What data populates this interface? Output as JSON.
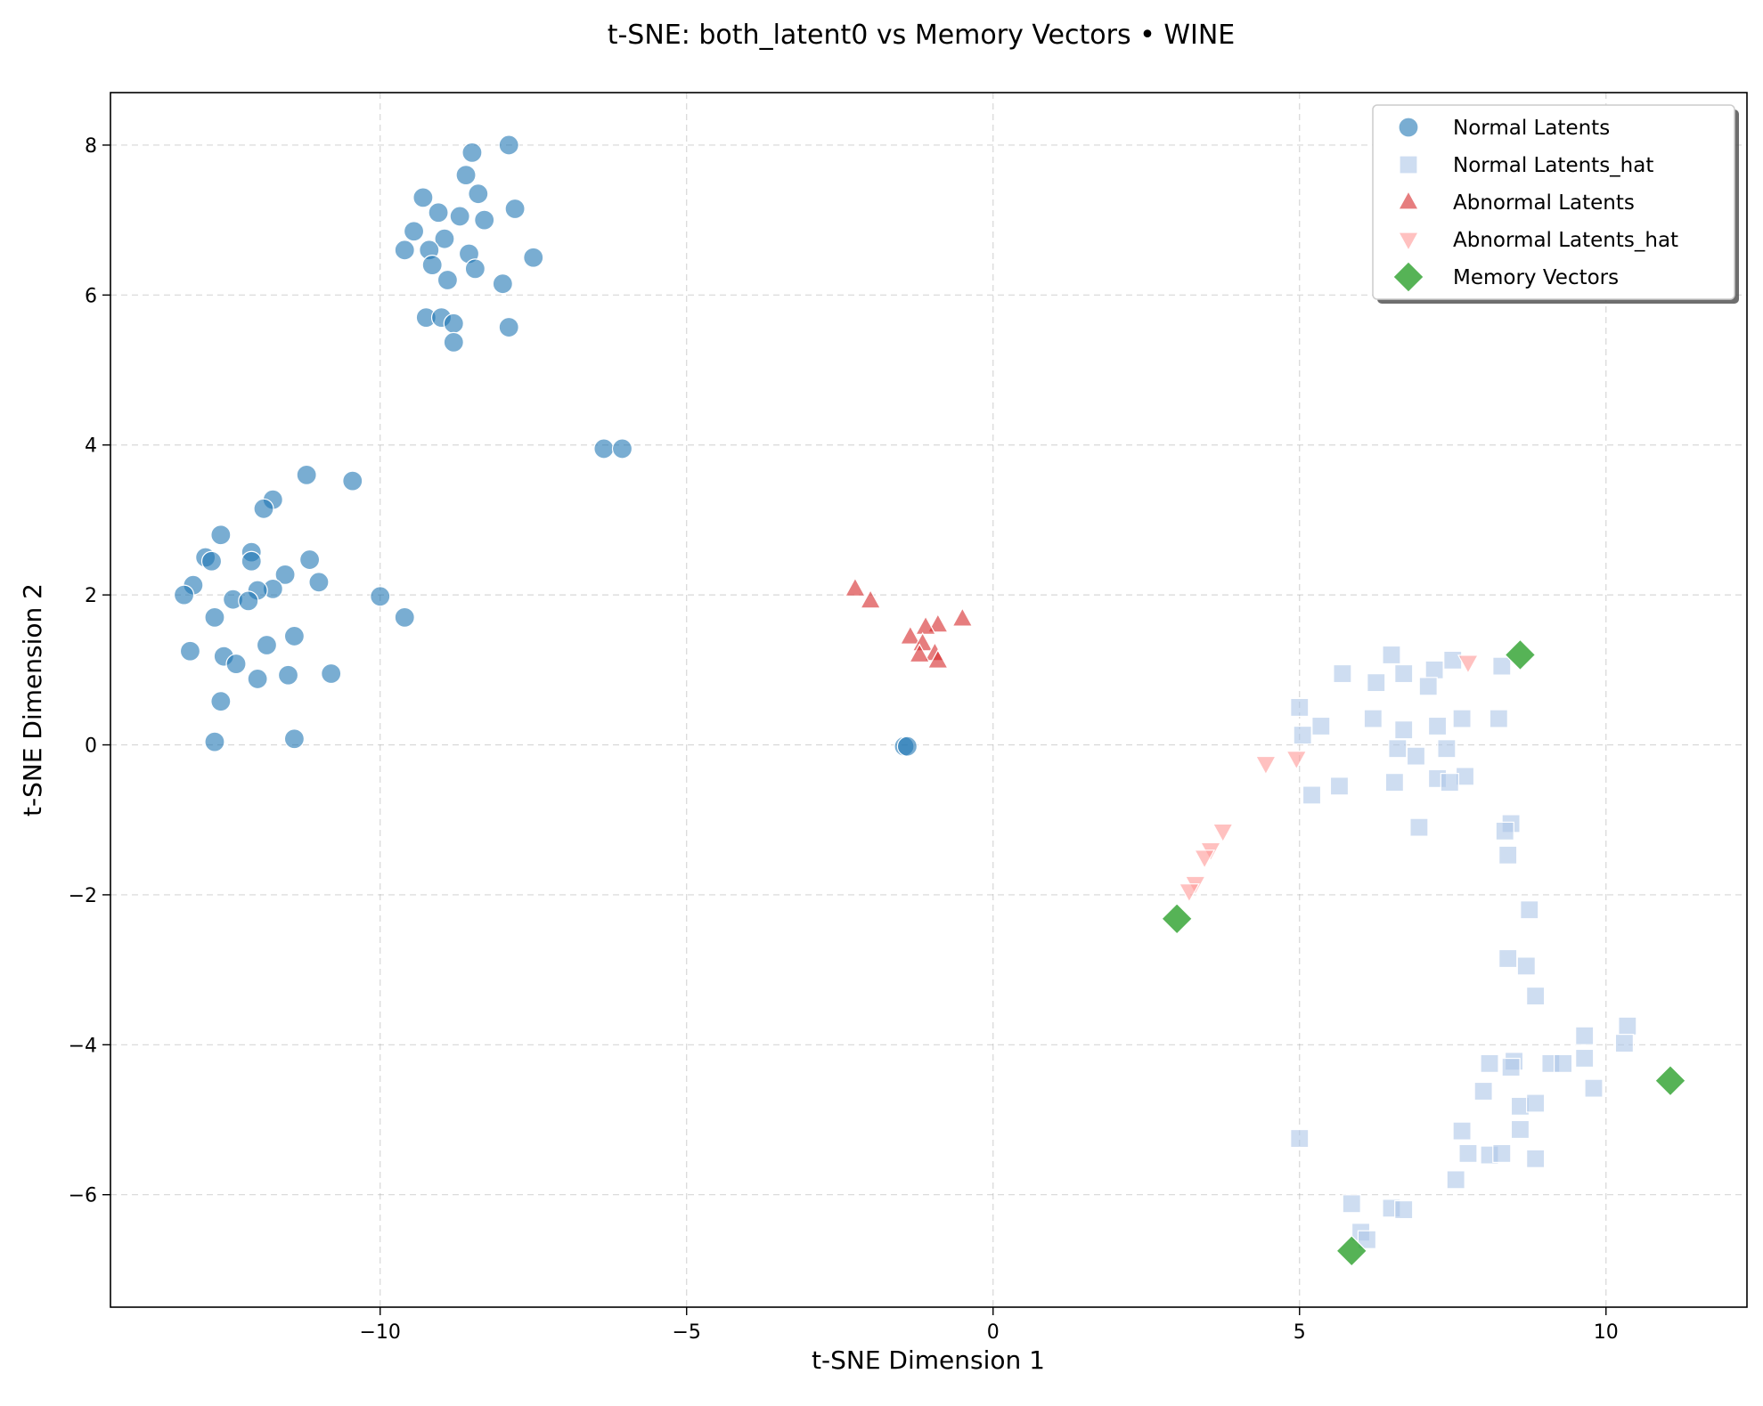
{
  "chart_data": {
    "type": "scatter",
    "title": "t-SNE: both_latent0 vs Memory Vectors • WINE",
    "xlabel": "t-SNE Dimension 1",
    "ylabel": "t-SNE Dimension 2",
    "xlim": [
      -14.4,
      12.3
    ],
    "ylim": [
      -7.5,
      8.7
    ],
    "xticks": [
      -10,
      -5,
      0,
      5,
      10
    ],
    "yticks": [
      -6,
      -4,
      -2,
      0,
      2,
      4,
      6,
      8
    ],
    "xtick_labels": [
      "−10",
      "−5",
      "0",
      "5",
      "10"
    ],
    "ytick_labels": [
      "−6",
      "−4",
      "−2",
      "0",
      "2",
      "4",
      "6",
      "8"
    ],
    "grid": true,
    "legend_position": "top-right",
    "series": [
      {
        "name": "Normal Latents",
        "marker": "circle",
        "color": "#1f77b4",
        "alpha": 0.6,
        "points": [
          [
            -8.5,
            7.9
          ],
          [
            -7.9,
            8.0
          ],
          [
            -8.6,
            7.6
          ],
          [
            -8.4,
            7.35
          ],
          [
            -9.3,
            7.3
          ],
          [
            -7.8,
            7.15
          ],
          [
            -9.05,
            7.1
          ],
          [
            -8.7,
            7.05
          ],
          [
            -8.3,
            7.0
          ],
          [
            -9.45,
            6.85
          ],
          [
            -8.95,
            6.75
          ],
          [
            -9.6,
            6.6
          ],
          [
            -9.2,
            6.6
          ],
          [
            -8.55,
            6.55
          ],
          [
            -7.5,
            6.5
          ],
          [
            -9.15,
            6.4
          ],
          [
            -8.45,
            6.35
          ],
          [
            -8.9,
            6.2
          ],
          [
            -8.0,
            6.15
          ],
          [
            -9.25,
            5.7
          ],
          [
            -9.0,
            5.7
          ],
          [
            -8.8,
            5.62
          ],
          [
            -7.9,
            5.57
          ],
          [
            -8.8,
            5.37
          ],
          [
            -6.35,
            3.95
          ],
          [
            -6.05,
            3.95
          ],
          [
            -11.2,
            3.6
          ],
          [
            -10.45,
            3.52
          ],
          [
            -11.75,
            3.27
          ],
          [
            -11.9,
            3.15
          ],
          [
            -12.6,
            2.8
          ],
          [
            -12.1,
            2.57
          ],
          [
            -12.85,
            2.5
          ],
          [
            -12.75,
            2.45
          ],
          [
            -12.1,
            2.45
          ],
          [
            -11.15,
            2.47
          ],
          [
            -11.55,
            2.27
          ],
          [
            -11.0,
            2.17
          ],
          [
            -13.05,
            2.13
          ],
          [
            -11.75,
            2.08
          ],
          [
            -12.0,
            2.06
          ],
          [
            -13.2,
            2.0
          ],
          [
            -10.0,
            1.98
          ],
          [
            -12.4,
            1.94
          ],
          [
            -12.15,
            1.92
          ],
          [
            -12.7,
            1.7
          ],
          [
            -9.6,
            1.7
          ],
          [
            -11.4,
            1.45
          ],
          [
            -11.85,
            1.33
          ],
          [
            -13.1,
            1.25
          ],
          [
            -12.55,
            1.18
          ],
          [
            -12.35,
            1.08
          ],
          [
            -10.8,
            0.95
          ],
          [
            -11.5,
            0.93
          ],
          [
            -12.0,
            0.88
          ],
          [
            -12.6,
            0.58
          ],
          [
            -12.7,
            0.04
          ],
          [
            -11.4,
            0.08
          ],
          [
            -1.45,
            -0.02
          ],
          [
            -1.4,
            -0.02
          ]
        ]
      },
      {
        "name": "Normal Latents_hat",
        "marker": "square",
        "color": "#aec7e8",
        "alpha": 0.6,
        "points": [
          [
            6.5,
            1.2
          ],
          [
            7.5,
            1.13
          ],
          [
            8.3,
            1.05
          ],
          [
            7.2,
            1.0
          ],
          [
            6.7,
            0.95
          ],
          [
            5.7,
            0.95
          ],
          [
            6.25,
            0.83
          ],
          [
            7.1,
            0.78
          ],
          [
            5.0,
            0.5
          ],
          [
            6.2,
            0.35
          ],
          [
            7.65,
            0.35
          ],
          [
            8.25,
            0.35
          ],
          [
            5.35,
            0.25
          ],
          [
            6.7,
            0.2
          ],
          [
            7.25,
            0.25
          ],
          [
            5.05,
            0.13
          ],
          [
            6.6,
            -0.05
          ],
          [
            7.4,
            -0.05
          ],
          [
            6.9,
            -0.15
          ],
          [
            7.25,
            -0.45
          ],
          [
            7.7,
            -0.42
          ],
          [
            7.45,
            -0.5
          ],
          [
            6.55,
            -0.5
          ],
          [
            5.65,
            -0.55
          ],
          [
            5.2,
            -0.67
          ],
          [
            6.95,
            -1.1
          ],
          [
            8.45,
            -1.05
          ],
          [
            8.35,
            -1.15
          ],
          [
            8.4,
            -1.47
          ],
          [
            8.75,
            -2.2
          ],
          [
            8.4,
            -2.85
          ],
          [
            8.7,
            -2.95
          ],
          [
            8.85,
            -3.35
          ],
          [
            10.35,
            -3.75
          ],
          [
            9.65,
            -3.88
          ],
          [
            10.3,
            -3.98
          ],
          [
            9.1,
            -4.25
          ],
          [
            9.3,
            -4.25
          ],
          [
            9.65,
            -4.18
          ],
          [
            8.5,
            -4.22
          ],
          [
            8.1,
            -4.25
          ],
          [
            8.45,
            -4.3
          ],
          [
            9.8,
            -4.58
          ],
          [
            8.0,
            -4.62
          ],
          [
            8.6,
            -4.82
          ],
          [
            8.85,
            -4.78
          ],
          [
            5.0,
            -5.25
          ],
          [
            7.65,
            -5.15
          ],
          [
            8.6,
            -5.13
          ],
          [
            7.75,
            -5.45
          ],
          [
            8.1,
            -5.47
          ],
          [
            8.3,
            -5.45
          ],
          [
            8.85,
            -5.52
          ],
          [
            7.55,
            -5.8
          ],
          [
            5.85,
            -6.12
          ],
          [
            6.5,
            -6.18
          ],
          [
            6.7,
            -6.2
          ],
          [
            6.0,
            -6.5
          ],
          [
            6.1,
            -6.6
          ]
        ]
      },
      {
        "name": "Abnormal Latents",
        "marker": "triangle-up",
        "color": "#d62728",
        "alpha": 0.6,
        "points": [
          [
            -2.25,
            2.08
          ],
          [
            -2.0,
            1.92
          ],
          [
            -0.5,
            1.68
          ],
          [
            -0.9,
            1.6
          ],
          [
            -1.1,
            1.57
          ],
          [
            -1.35,
            1.44
          ],
          [
            -1.15,
            1.35
          ],
          [
            -0.95,
            1.22
          ],
          [
            -1.2,
            1.2
          ],
          [
            -0.9,
            1.12
          ]
        ]
      },
      {
        "name": "Abnormal Latents_hat",
        "marker": "triangle-down",
        "color": "#ff9896",
        "alpha": 0.6,
        "points": [
          [
            7.75,
            1.1
          ],
          [
            4.45,
            -0.25
          ],
          [
            4.95,
            -0.18
          ],
          [
            3.75,
            -1.15
          ],
          [
            3.55,
            -1.4
          ],
          [
            3.45,
            -1.5
          ],
          [
            3.3,
            -1.85
          ],
          [
            3.2,
            -1.95
          ]
        ]
      },
      {
        "name": "Memory Vectors",
        "marker": "diamond",
        "color": "#2ca02c",
        "alpha": 0.8,
        "points": [
          [
            8.6,
            1.2
          ],
          [
            3.0,
            -2.32
          ],
          [
            11.05,
            -4.48
          ],
          [
            5.85,
            -6.75
          ]
        ]
      }
    ]
  }
}
